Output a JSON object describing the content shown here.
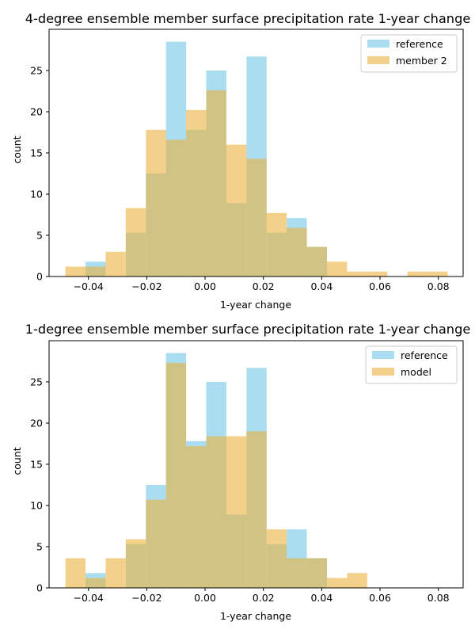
{
  "chart_data": [
    {
      "type": "bar",
      "title": "4-degree ensemble member surface precipitation rate 1-year change",
      "xlabel": "1-year change",
      "ylabel": "count",
      "xlim": [
        -0.0535,
        0.0885
      ],
      "ylim": [
        0,
        30
      ],
      "xticks": [
        -0.04,
        -0.02,
        0.0,
        0.02,
        0.04,
        0.06,
        0.08
      ],
      "xtick_labels": [
        "−0.04",
        "−0.02",
        "0.00",
        "0.02",
        "0.04",
        "0.06",
        "0.08"
      ],
      "yticks": [
        0,
        5,
        10,
        15,
        20,
        25
      ],
      "ytick_labels": [
        "0",
        "5",
        "10",
        "15",
        "20",
        "25"
      ],
      "legend": "top-right",
      "grid": false,
      "bin_edges": [
        -0.0479,
        -0.041,
        -0.0341,
        -0.0272,
        -0.0203,
        -0.0134,
        -0.0065,
        0.0004,
        0.0073,
        0.0142,
        0.0211,
        0.028,
        0.0349,
        0.0418,
        0.0487,
        0.0556,
        0.0625,
        0.0694,
        0.0763,
        0.0832
      ],
      "series": [
        {
          "name": "reference",
          "color": "#87ceeb",
          "opacity": 0.7,
          "values": [
            0,
            1.8,
            0,
            5.3,
            12.5,
            28.5,
            17.8,
            25.0,
            8.9,
            26.7,
            5.3,
            7.1,
            3.6,
            0,
            0,
            0,
            0,
            0,
            0
          ]
        },
        {
          "name": "member 2",
          "color": "#ebb23c",
          "opacity": 0.6,
          "values": [
            1.2,
            1.2,
            3.0,
            8.3,
            17.8,
            16.6,
            20.2,
            22.6,
            16.0,
            14.3,
            7.7,
            5.9,
            3.6,
            1.8,
            0.6,
            0.6,
            0,
            0.6,
            0.6
          ]
        }
      ]
    },
    {
      "type": "bar",
      "title": "1-degree ensemble member surface precipitation rate 1-year change",
      "xlabel": "1-year change",
      "ylabel": "count",
      "xlim": [
        -0.0535,
        0.0885
      ],
      "ylim": [
        0,
        30
      ],
      "xticks": [
        -0.04,
        -0.02,
        0.0,
        0.02,
        0.04,
        0.06,
        0.08
      ],
      "xtick_labels": [
        "−0.04",
        "−0.02",
        "0.00",
        "0.02",
        "0.04",
        "0.06",
        "0.08"
      ],
      "yticks": [
        0,
        5,
        10,
        15,
        20,
        25
      ],
      "ytick_labels": [
        "0",
        "5",
        "10",
        "15",
        "20",
        "25"
      ],
      "legend": "top-right",
      "grid": false,
      "bin_edges": [
        -0.0479,
        -0.041,
        -0.0341,
        -0.0272,
        -0.0203,
        -0.0134,
        -0.0065,
        0.0004,
        0.0073,
        0.0142,
        0.0211,
        0.028,
        0.0349,
        0.0418,
        0.0487,
        0.0556,
        0.0625,
        0.0694,
        0.0763,
        0.0832
      ],
      "series": [
        {
          "name": "reference",
          "color": "#87ceeb",
          "opacity": 0.7,
          "values": [
            0,
            1.8,
            0,
            5.3,
            12.5,
            28.5,
            17.8,
            25.0,
            8.9,
            26.7,
            5.3,
            7.1,
            3.6,
            0,
            0,
            0,
            0,
            0,
            0
          ]
        },
        {
          "name": "model",
          "color": "#ebb23c",
          "opacity": 0.6,
          "values": [
            3.6,
            1.2,
            3.6,
            5.9,
            10.7,
            27.3,
            17.2,
            18.4,
            18.4,
            19.0,
            7.1,
            3.6,
            3.6,
            1.2,
            1.8,
            0,
            0,
            0,
            0
          ]
        }
      ]
    }
  ]
}
